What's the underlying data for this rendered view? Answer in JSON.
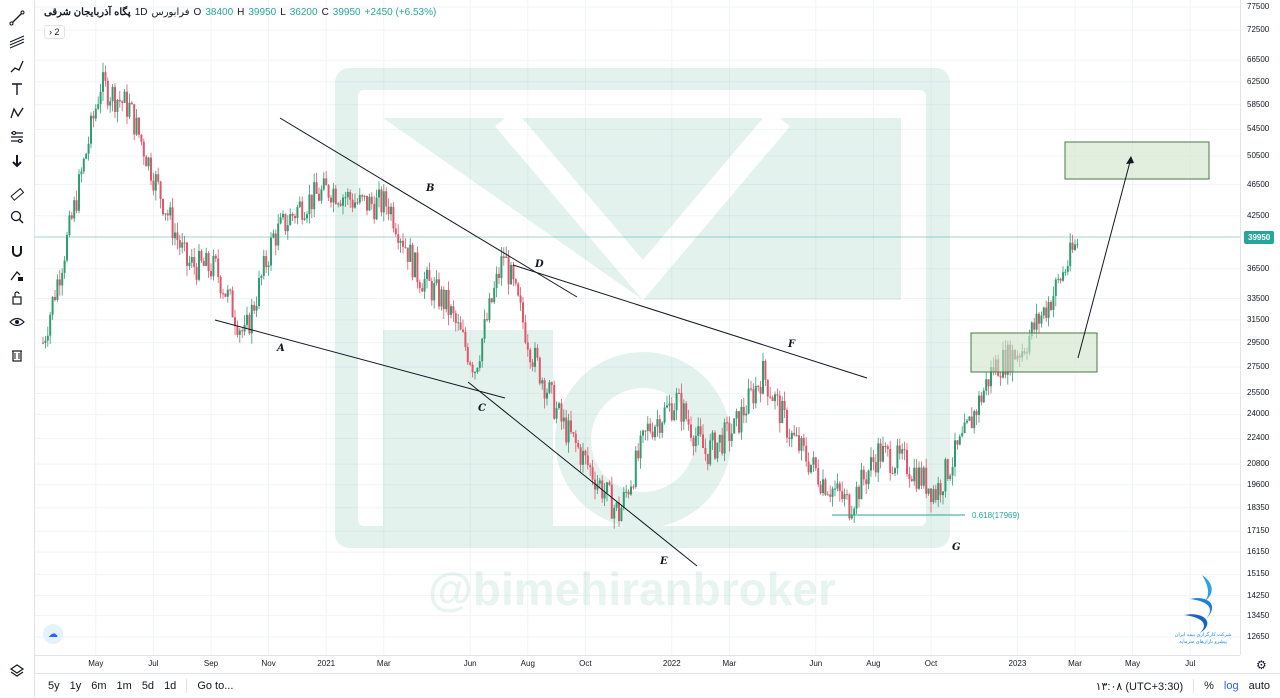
{
  "legend": {
    "symbol": "پگاه آذربایجان شرقی",
    "interval": "1D",
    "exchange": "فرابورس",
    "open_label": "O",
    "open": "38400",
    "high_label": "H",
    "high": "39950",
    "low_label": "L",
    "low": "36200",
    "close_label": "C",
    "close": "39950",
    "change": "+2450 (+6.53%)",
    "collapse_count": "2"
  },
  "colors": {
    "up": "#26a69a",
    "down": "#ef5350",
    "bar_down": "#e0566b",
    "bar_up": "#2e9e72",
    "line": "#131722",
    "fib": "#26a69a",
    "zone_fill": "#cfe4c9",
    "zone_stroke": "#4a7a43",
    "watermark": "#2e9e72"
  },
  "price_axis": {
    "scale": "log",
    "ticks": [
      "77500",
      "72500",
      "66500",
      "62500",
      "58500",
      "54500",
      "50500",
      "46500",
      "42500",
      "36500",
      "33500",
      "31500",
      "29500",
      "27500",
      "25500",
      "24000",
      "22400",
      "20800",
      "19600",
      "18350",
      "17150",
      "16150",
      "15150",
      "14250",
      "13450",
      "12650"
    ],
    "last_price": "39950"
  },
  "time_axis": {
    "ticks": [
      "May",
      "Jul",
      "Sep",
      "Nov",
      "2021",
      "Mar",
      "Jun",
      "Aug",
      "Oct",
      "2022",
      "Mar",
      "Jun",
      "Aug",
      "Oct",
      "2023",
      "Mar",
      "May",
      "Jul"
    ]
  },
  "annotations": {
    "labels": [
      "A",
      "B",
      "C",
      "D",
      "E",
      "F",
      "G"
    ],
    "fib_label": "0.618(17969)"
  },
  "watermark": {
    "text": "@bimehiranbroker"
  },
  "bottom_bar": {
    "ranges": [
      "5y",
      "1y",
      "6m",
      "1m",
      "5d",
      "1d"
    ],
    "goto": "Go to...",
    "clock": "۱۳:۰۸ (UTC+3:30)",
    "percent": "%",
    "log": "log",
    "auto": "auto"
  },
  "logo": {
    "line1": "شرکت کارگزاری بیمه ایران",
    "line2": "پیشرو بازارهای سرمایه"
  },
  "toolbar": {
    "icons": [
      "trendline-icon",
      "pitchfork-icon",
      "brush-icon",
      "text-icon",
      "pattern-icon",
      "measure-icon",
      "arrow-down-icon",
      "ruler-icon",
      "zoom-icon",
      "magnet-icon",
      "lock-drawing-icon",
      "lock-icon",
      "eye-icon",
      "trash-icon",
      "layers-icon"
    ]
  },
  "chart_data": {
    "type": "candlestick",
    "symbol": "پگاه آذربایجان شرقی",
    "interval": "1D",
    "y_scale": "log",
    "ylim": [
      12000,
      78000
    ],
    "x_range": [
      "2020-04",
      "2023-07"
    ],
    "x": [
      "2020-04",
      "2020-05",
      "2020-06",
      "2020-07",
      "2020-08",
      "2020-09",
      "2020-10",
      "2020-11",
      "2020-12",
      "2021-01",
      "2021-02",
      "2021-03",
      "2021-04",
      "2021-05",
      "2021-06",
      "2021-07",
      "2021-08",
      "2021-09",
      "2021-10",
      "2021-11",
      "2021-12",
      "2022-01",
      "2022-02",
      "2022-03",
      "2022-04",
      "2022-05",
      "2022-06",
      "2022-07",
      "2022-08",
      "2022-09",
      "2022-10",
      "2022-11",
      "2022-12",
      "2023-01",
      "2023-02",
      "2023-03",
      "2023-04"
    ],
    "close": [
      29500,
      42000,
      62000,
      58000,
      46000,
      37000,
      36500,
      30000,
      40000,
      44000,
      46000,
      44000,
      44000,
      36000,
      33000,
      27500,
      38000,
      28500,
      23500,
      20500,
      18000,
      23000,
      25000,
      21500,
      23000,
      27000,
      22500,
      20000,
      18500,
      21500,
      20800,
      19200,
      22500,
      27500,
      29000,
      33500,
      39950
    ],
    "last": {
      "open": 38400,
      "high": 39950,
      "low": 36200,
      "close": 39950,
      "change": 2450,
      "change_pct": 6.53
    },
    "annotations": [
      {
        "label": "A",
        "price": 30000
      },
      {
        "label": "B",
        "price": 47000
      },
      {
        "label": "C",
        "price": 25500
      },
      {
        "label": "D",
        "price": 37500
      },
      {
        "label": "E",
        "price": 16500
      },
      {
        "label": "F",
        "price": 29500
      },
      {
        "label": "G",
        "price": 17000
      }
    ],
    "fib_level": {
      "label": "0.618(17969)",
      "value": 17969
    },
    "zones": [
      {
        "price_top": 30000,
        "price_bottom": 27000
      },
      {
        "price_top": 52000,
        "price_bottom": 47000
      }
    ],
    "grid": true
  }
}
